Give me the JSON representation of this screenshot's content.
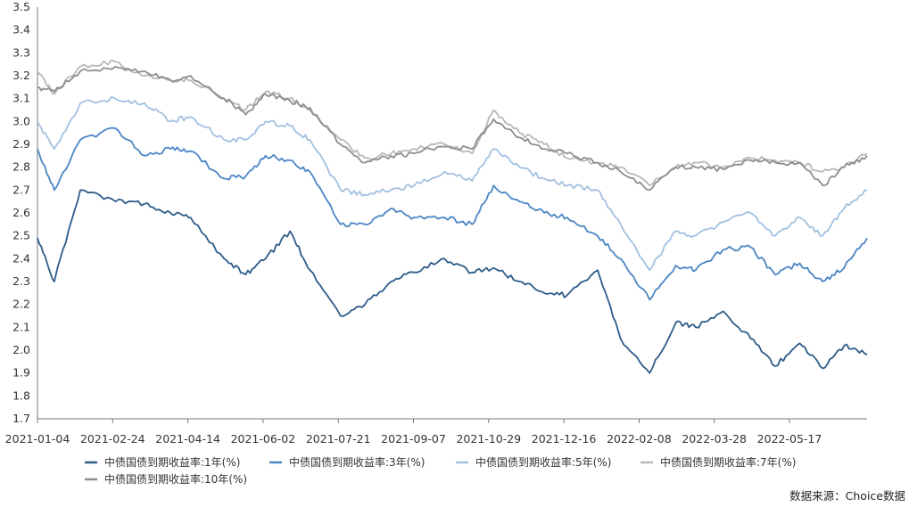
{
  "chart_data": {
    "type": "line",
    "title": "",
    "xlabel": "",
    "ylabel": "",
    "ylim": [
      1.7,
      3.5
    ],
    "yticks": [
      "1.7",
      "1.8",
      "1.9",
      "2.0",
      "2.1",
      "2.2",
      "2.3",
      "2.4",
      "2.5",
      "2.6",
      "2.7",
      "2.8",
      "2.9",
      "3.0",
      "3.1",
      "3.2",
      "3.3",
      "3.4",
      "3.5"
    ],
    "x_tick_labels": [
      "2021-01-04",
      "2021-02-24",
      "2021-04-14",
      "2021-06-02",
      "2021-07-21",
      "2021-09-07",
      "2021-10-29",
      "2021-12-16",
      "2022-02-08",
      "2022-03-28",
      "2022-05-17"
    ],
    "grid": false,
    "legend_position": "bottom",
    "x": [
      "2021-01-04",
      "2021-01-15",
      "2021-02-01",
      "2021-02-24",
      "2021-03-15",
      "2021-04-01",
      "2021-04-14",
      "2021-05-06",
      "2021-05-20",
      "2021-06-02",
      "2021-06-18",
      "2021-07-01",
      "2021-07-21",
      "2021-08-06",
      "2021-08-23",
      "2021-09-07",
      "2021-09-27",
      "2021-10-15",
      "2021-10-29",
      "2021-11-15",
      "2021-12-01",
      "2021-12-16",
      "2022-01-05",
      "2022-01-20",
      "2022-02-08",
      "2022-02-25",
      "2022-03-10",
      "2022-03-28",
      "2022-04-15",
      "2022-05-01",
      "2022-05-17",
      "2022-06-01",
      "2022-06-15",
      "2022-06-30"
    ],
    "series": [
      {
        "name": "中债国债到期收益率:1年(%)",
        "color": "#2e5c8a",
        "values": [
          2.49,
          2.3,
          2.7,
          2.65,
          2.64,
          2.6,
          2.58,
          2.4,
          2.33,
          2.4,
          2.52,
          2.35,
          2.15,
          2.2,
          2.3,
          2.34,
          2.4,
          2.34,
          2.36,
          2.3,
          2.25,
          2.24,
          2.35,
          2.05,
          1.9,
          2.12,
          2.1,
          2.17,
          2.05,
          1.93,
          2.03,
          1.92,
          2.02,
          1.98
        ]
      },
      {
        "name": "中债国债到期收益率:3年(%)",
        "color": "#4a86c5",
        "values": [
          2.88,
          2.7,
          2.92,
          2.97,
          2.85,
          2.88,
          2.87,
          2.75,
          2.76,
          2.85,
          2.83,
          2.78,
          2.55,
          2.55,
          2.62,
          2.58,
          2.58,
          2.55,
          2.72,
          2.65,
          2.6,
          2.58,
          2.5,
          2.4,
          2.22,
          2.37,
          2.35,
          2.44,
          2.45,
          2.33,
          2.38,
          2.3,
          2.36,
          2.49
        ]
      },
      {
        "name": "中债国债到期收益率:5年(%)",
        "color": "#a3c0e0",
        "values": [
          3.0,
          2.88,
          3.08,
          3.1,
          3.08,
          3.0,
          3.02,
          2.92,
          2.92,
          3.0,
          2.98,
          2.92,
          2.7,
          2.68,
          2.7,
          2.72,
          2.78,
          2.74,
          2.88,
          2.8,
          2.75,
          2.72,
          2.7,
          2.55,
          2.35,
          2.52,
          2.5,
          2.56,
          2.6,
          2.5,
          2.58,
          2.5,
          2.62,
          2.7
        ]
      },
      {
        "name": "中债国债到期收益率:7年(%)",
        "color": "#b8b8b8",
        "values": [
          3.22,
          3.12,
          3.24,
          3.26,
          3.2,
          3.18,
          3.18,
          3.1,
          3.05,
          3.13,
          3.1,
          3.05,
          2.92,
          2.84,
          2.86,
          2.88,
          2.9,
          2.86,
          3.05,
          2.95,
          2.9,
          2.84,
          2.82,
          2.8,
          2.72,
          2.8,
          2.82,
          2.8,
          2.84,
          2.83,
          2.82,
          2.78,
          2.8,
          2.86
        ]
      },
      {
        "name": "中债国债到期收益率:10年(%)",
        "color": "#8e8e8e",
        "values": [
          3.15,
          3.13,
          3.22,
          3.24,
          3.22,
          3.18,
          3.2,
          3.1,
          3.03,
          3.12,
          3.09,
          3.06,
          2.9,
          2.82,
          2.85,
          2.86,
          2.89,
          2.88,
          3.01,
          2.93,
          2.88,
          2.86,
          2.82,
          2.78,
          2.7,
          2.8,
          2.8,
          2.79,
          2.83,
          2.82,
          2.82,
          2.72,
          2.8,
          2.85
        ]
      }
    ],
    "source_note": "数据来源：Choice数据"
  }
}
